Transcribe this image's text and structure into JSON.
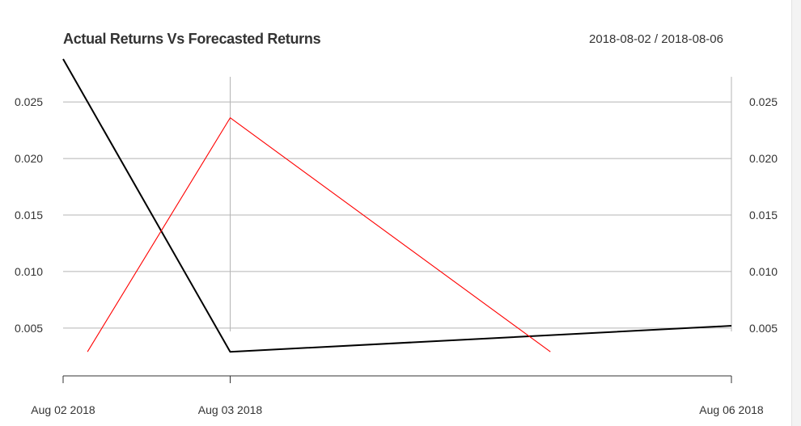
{
  "chart_data": {
    "type": "line",
    "title": "Actual Returns Vs Forecasted Returns",
    "date_range": "2018-08-02 / 2018-08-06",
    "x_dates": [
      "2018-08-02",
      "2018-08-03",
      "2018-08-06"
    ],
    "x_tick_labels": [
      "Aug 02 2018",
      "Aug 03 2018",
      "Aug 06 2018"
    ],
    "y_ticks": [
      0.005,
      0.01,
      0.015,
      0.02,
      0.025
    ],
    "y_tick_labels": [
      "0.005",
      "0.010",
      "0.015",
      "0.020",
      "0.025"
    ],
    "ylim": [
      0.0017,
      0.0283
    ],
    "grid": true,
    "series": [
      {
        "color": "#000000",
        "points": [
          {
            "x": "2018-08-02",
            "y": 0.0288
          },
          {
            "x": "2018-08-03",
            "y": 0.0029
          },
          {
            "x": "2018-08-06",
            "y": 0.0052
          }
        ]
      },
      {
        "color": "#ff0000",
        "points": [
          {
            "x": "2018-08-02 03:30",
            "y": 0.0029
          },
          {
            "x": "2018-08-03",
            "y": 0.0236
          },
          {
            "x": "2018-08-04 22:00",
            "y": 0.0029
          }
        ]
      }
    ]
  }
}
